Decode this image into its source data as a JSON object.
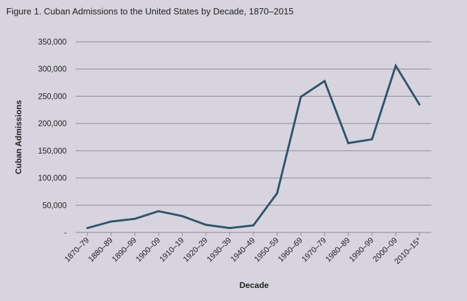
{
  "chart_data": {
    "type": "line",
    "title": "Figure 1. Cuban Admissions to the United States by Decade, 1870–2015",
    "xlabel": "Decade",
    "ylabel": "Cuban Admissions",
    "categories": [
      "1870–79",
      "1880–89",
      "1890–99",
      "1900–09",
      "1910–19",
      "1920–29",
      "1930–39",
      "1940–49",
      "1950–59",
      "1960–69",
      "1970–79",
      "1980–89",
      "1990–99",
      "2000–09",
      "2010–15*"
    ],
    "series": [
      {
        "values": [
          8000,
          20000,
          25000,
          39000,
          30000,
          14000,
          8000,
          13000,
          72000,
          249000,
          278000,
          164000,
          171000,
          306000,
          235000
        ]
      }
    ],
    "ylim": [
      0,
      350000
    ],
    "yticks": [
      0,
      50000,
      100000,
      150000,
      200000,
      250000,
      300000,
      350000
    ],
    "ytick_labels": [
      "-",
      "50,000",
      "100,000",
      "150,000",
      "200,000",
      "250,000",
      "300,000",
      "350,000"
    ],
    "grid": true,
    "line_color": "#2f5566",
    "grid_color": "#8b8a90",
    "background_color": "#d7d3df"
  }
}
